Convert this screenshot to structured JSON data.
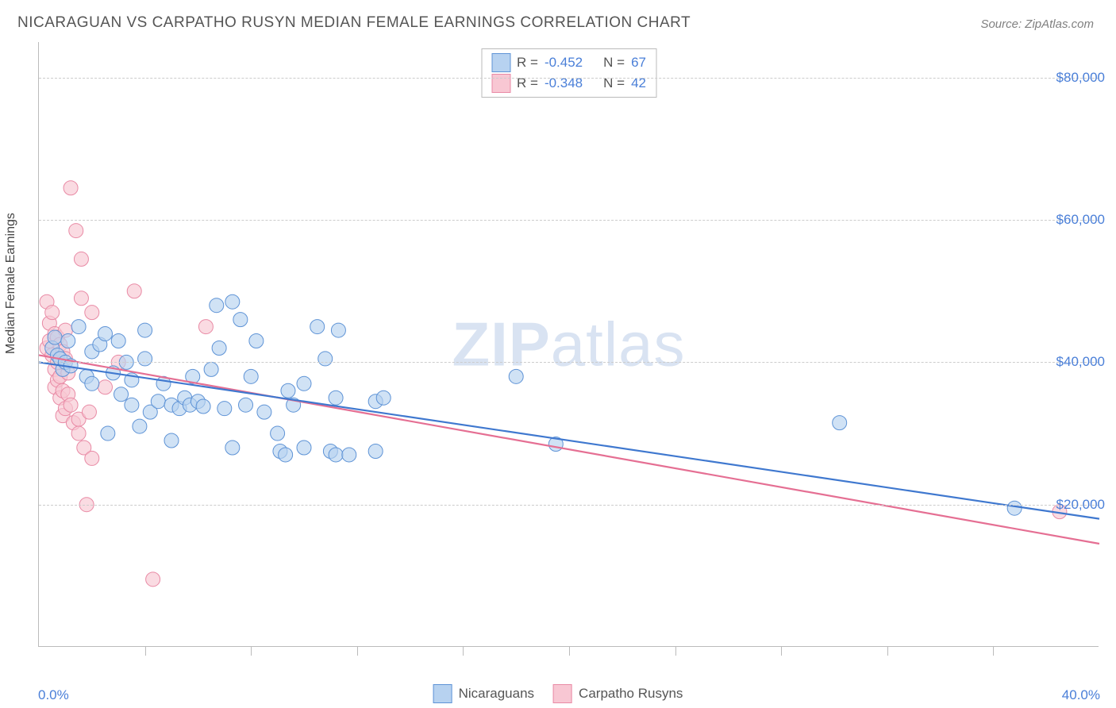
{
  "title": "NICARAGUAN VS CARPATHO RUSYN MEDIAN FEMALE EARNINGS CORRELATION CHART",
  "source": "Source: ZipAtlas.com",
  "watermark": {
    "bold": "ZIP",
    "rest": "atlas"
  },
  "ylabel": "Median Female Earnings",
  "chart": {
    "type": "scatter",
    "xlim": [
      0,
      40
    ],
    "ylim": [
      0,
      85000
    ],
    "xticks": [
      0,
      4,
      8,
      12,
      16,
      20,
      24,
      28,
      32,
      36,
      40
    ],
    "xlim_labels": {
      "min": "0.0%",
      "max": "40.0%"
    },
    "ygrid": [
      20000,
      40000,
      60000,
      80000
    ],
    "ytick_labels": [
      "$20,000",
      "$40,000",
      "$60,000",
      "$80,000"
    ],
    "background_color": "#ffffff",
    "grid_color": "#cccccc",
    "axis_color": "#bbbbbb",
    "tick_label_color": "#4a7fd8",
    "marker_radius": 9,
    "marker_stroke_width": 1,
    "trend_line_width": 2.2,
    "series": [
      {
        "name": "Nicaraguans",
        "fill": "#b7d2f0",
        "stroke": "#5e93d6",
        "line_color": "#3f78cf",
        "R": "-0.452",
        "N": "67",
        "trend": {
          "x1": 0,
          "y1": 40000,
          "x2": 40,
          "y2": 18000
        },
        "points": [
          [
            0.5,
            42000
          ],
          [
            0.6,
            43500
          ],
          [
            0.7,
            41000
          ],
          [
            0.8,
            40500
          ],
          [
            0.9,
            39000
          ],
          [
            1.0,
            40000
          ],
          [
            1.1,
            43000
          ],
          [
            1.2,
            39500
          ],
          [
            1.5,
            45000
          ],
          [
            1.8,
            38000
          ],
          [
            2.0,
            41500
          ],
          [
            2.0,
            37000
          ],
          [
            2.3,
            42500
          ],
          [
            2.5,
            44000
          ],
          [
            2.6,
            30000
          ],
          [
            2.8,
            38500
          ],
          [
            3.0,
            43000
          ],
          [
            3.1,
            35500
          ],
          [
            3.3,
            40000
          ],
          [
            3.5,
            34000
          ],
          [
            3.5,
            37500
          ],
          [
            3.8,
            31000
          ],
          [
            4.0,
            40500
          ],
          [
            4.0,
            44500
          ],
          [
            4.2,
            33000
          ],
          [
            4.5,
            34500
          ],
          [
            4.7,
            37000
          ],
          [
            5.0,
            34000
          ],
          [
            5.0,
            29000
          ],
          [
            5.3,
            33500
          ],
          [
            5.5,
            35000
          ],
          [
            5.7,
            34000
          ],
          [
            5.8,
            38000
          ],
          [
            6.0,
            34500
          ],
          [
            6.2,
            33800
          ],
          [
            6.5,
            39000
          ],
          [
            6.7,
            48000
          ],
          [
            6.8,
            42000
          ],
          [
            7.0,
            33500
          ],
          [
            7.3,
            48500
          ],
          [
            7.3,
            28000
          ],
          [
            7.6,
            46000
          ],
          [
            7.8,
            34000
          ],
          [
            8.0,
            38000
          ],
          [
            8.2,
            43000
          ],
          [
            8.5,
            33000
          ],
          [
            9.0,
            30000
          ],
          [
            9.1,
            27500
          ],
          [
            9.4,
            36000
          ],
          [
            9.3,
            27000
          ],
          [
            9.6,
            34000
          ],
          [
            10.0,
            28000
          ],
          [
            10.0,
            37000
          ],
          [
            10.5,
            45000
          ],
          [
            10.8,
            40500
          ],
          [
            11.0,
            27500
          ],
          [
            11.2,
            35000
          ],
          [
            11.2,
            27000
          ],
          [
            11.3,
            44500
          ],
          [
            11.7,
            27000
          ],
          [
            12.7,
            34500
          ],
          [
            12.7,
            27500
          ],
          [
            13.0,
            35000
          ],
          [
            18.0,
            38000
          ],
          [
            19.5,
            28500
          ],
          [
            30.2,
            31500
          ],
          [
            36.8,
            19500
          ]
        ]
      },
      {
        "name": "Carpatho Rusyns",
        "fill": "#f8c7d3",
        "stroke": "#e98aa5",
        "line_color": "#e56f93",
        "R": "-0.348",
        "N": "42",
        "trend": {
          "x1": 0,
          "y1": 41000,
          "x2": 40,
          "y2": 14500
        },
        "points": [
          [
            0.3,
            48500
          ],
          [
            0.3,
            42000
          ],
          [
            0.4,
            45500
          ],
          [
            0.4,
            43000
          ],
          [
            0.5,
            47000
          ],
          [
            0.5,
            41000
          ],
          [
            0.6,
            44000
          ],
          [
            0.6,
            39000
          ],
          [
            0.6,
            36500
          ],
          [
            0.7,
            43500
          ],
          [
            0.7,
            40000
          ],
          [
            0.7,
            37500
          ],
          [
            0.8,
            42500
          ],
          [
            0.8,
            38000
          ],
          [
            0.8,
            35000
          ],
          [
            0.9,
            41500
          ],
          [
            0.9,
            36000
          ],
          [
            0.9,
            32500
          ],
          [
            1.0,
            40500
          ],
          [
            1.0,
            44500
          ],
          [
            1.0,
            33500
          ],
          [
            1.1,
            35500
          ],
          [
            1.1,
            38500
          ],
          [
            1.2,
            64500
          ],
          [
            1.2,
            34000
          ],
          [
            1.3,
            31500
          ],
          [
            1.4,
            58500
          ],
          [
            1.5,
            32000
          ],
          [
            1.5,
            30000
          ],
          [
            1.6,
            54500
          ],
          [
            1.6,
            49000
          ],
          [
            1.7,
            28000
          ],
          [
            1.8,
            20000
          ],
          [
            1.9,
            33000
          ],
          [
            2.0,
            47000
          ],
          [
            2.0,
            26500
          ],
          [
            2.5,
            36500
          ],
          [
            3.6,
            50000
          ],
          [
            4.3,
            9500
          ],
          [
            6.3,
            45000
          ],
          [
            3.0,
            40000
          ],
          [
            38.5,
            19000
          ]
        ]
      }
    ]
  },
  "stats_legend": {
    "r_label": "R =",
    "n_label": "N ="
  },
  "bottom_legend": {
    "items": [
      "Nicaraguans",
      "Carpatho Rusyns"
    ]
  }
}
